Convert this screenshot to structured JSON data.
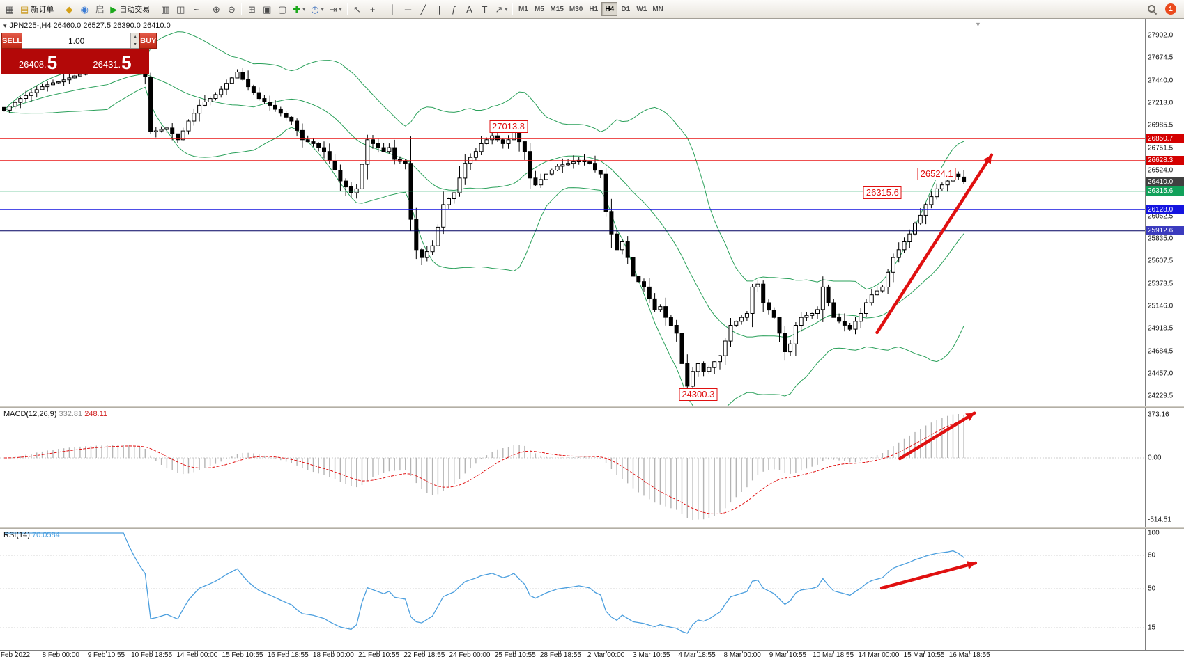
{
  "toolbar": {
    "items": [
      {
        "name": "new-chart",
        "glyph": "▦"
      },
      {
        "name": "new-order",
        "glyph": "▤",
        "glyph_color": "#c99718",
        "label": "新订单"
      },
      {
        "type": "sep"
      },
      {
        "name": "market-watch",
        "glyph": "◆",
        "glyph_color": "#d4a017"
      },
      {
        "name": "navigator",
        "glyph": "◉",
        "glyph_color": "#3b7bd4"
      },
      {
        "name": "terminal",
        "glyph": "启",
        "glyph_color": "#666666"
      },
      {
        "name": "auto-trading",
        "glyph": "▶",
        "glyph_color": "#1ca81c",
        "label": "自动交易"
      },
      {
        "type": "sep"
      },
      {
        "name": "bar-chart",
        "glyph": "▥"
      },
      {
        "name": "candlestick-chart",
        "glyph": "◫"
      },
      {
        "name": "line-chart",
        "glyph": "~"
      },
      {
        "type": "sep"
      },
      {
        "name": "zoom-in",
        "glyph": "⊕"
      },
      {
        "name": "zoom-out",
        "glyph": "⊖"
      },
      {
        "type": "sep"
      },
      {
        "name": "tile-windows",
        "glyph": "⊞"
      },
      {
        "name": "auto-arrange",
        "glyph": "▣"
      },
      {
        "name": "cascade-windows",
        "glyph": "▢"
      },
      {
        "name": "new-chart-dropdown",
        "glyph": "✚",
        "glyph_color": "#1ca81c",
        "caret": true
      },
      {
        "name": "profiles",
        "glyph": "◷",
        "glyph_color": "#2a62b8",
        "caret": true
      },
      {
        "name": "chart-shift",
        "glyph": "⇥",
        "caret": true
      },
      {
        "type": "sep"
      },
      {
        "name": "cursor",
        "glyph": "↖"
      },
      {
        "name": "crosshair",
        "glyph": "+"
      },
      {
        "type": "sep"
      },
      {
        "name": "vertical-line",
        "glyph": "│"
      },
      {
        "name": "horizontal-line",
        "glyph": "─"
      },
      {
        "name": "trendline",
        "glyph": "╱"
      },
      {
        "name": "channel",
        "glyph": "∥"
      },
      {
        "name": "fibonacci",
        "glyph": "ƒ"
      },
      {
        "name": "text",
        "glyph": "A"
      },
      {
        "name": "text-label",
        "glyph": "T"
      },
      {
        "name": "arrows-tool",
        "glyph": "↗",
        "caret": true
      },
      {
        "type": "sep"
      }
    ],
    "timeframes": {
      "items": [
        "M1",
        "M5",
        "M15",
        "M30",
        "H1",
        "H4",
        "D1",
        "W1",
        "MN"
      ],
      "active": "H4"
    },
    "right_badge": "1"
  },
  "chart": {
    "title": "JPN225-,H4  26460.0 26527.5 26390.0 26410.0",
    "collapse_glyph": "▾",
    "shift_marker_glyph": "▼"
  },
  "trade_panel": {
    "sell_label": "SELL",
    "buy_label": "BUY",
    "volume": "1.00",
    "spinner_up": "▴",
    "spinner_down": "▾",
    "sell_price_main": "26408.",
    "sell_price_big": "5",
    "buy_price_main": "26431.",
    "buy_price_big": "5"
  },
  "chart_data": {
    "type": "candlestick",
    "symbol": "JPN225-",
    "timeframe": "H4",
    "last_bar": {
      "open": 26460.0,
      "high": 26527.5,
      "low": 26390.0,
      "close": 26410.0
    },
    "ylim": [
      24131,
      28072
    ],
    "y_ticks": [
      27902.0,
      27674.5,
      27440.0,
      27213.0,
      26985.5,
      26751.5,
      26524.0,
      26062.5,
      25835.0,
      25607.5,
      25373.5,
      25146.0,
      24918.5,
      24684.5,
      24457.0,
      24229.5
    ],
    "closes": [
      27140,
      27180,
      27220,
      27260,
      27290,
      27320,
      27350,
      27380,
      27400,
      27420,
      27430,
      27450,
      27470,
      27490,
      27505,
      27515,
      27530,
      27545,
      27555,
      27570,
      27585,
      27600,
      27620,
      27585,
      27550,
      27515,
      27480,
      26920,
      26930,
      26945,
      26960,
      26900,
      26840,
      26930,
      27030,
      27110,
      27190,
      27225,
      27260,
      27300,
      27355,
      27415,
      27470,
      27530,
      27455,
      27380,
      27320,
      27260,
      27225,
      27190,
      27150,
      27110,
      27070,
      27030,
      26935,
      26840,
      26820,
      26800,
      26760,
      26720,
      26625,
      26530,
      26420,
      26360,
      26300,
      26340,
      26590,
      26840,
      26800,
      26760,
      26720,
      26760,
      26640,
      26620,
      26600,
      26030,
      25720,
      25640,
      25700,
      25760,
      25950,
      26180,
      26240,
      26300,
      26450,
      26600,
      26660,
      26720,
      26800,
      26840,
      26880,
      26840,
      26800,
      26840,
      26920,
      26820,
      26720,
      26450,
      26380,
      26435,
      26490,
      26530,
      26570,
      26585,
      26600,
      26615,
      26630,
      26615,
      26600,
      26530,
      26490,
      26110,
      25880,
      25720,
      25800,
      25640,
      25450,
      25395,
      25340,
      25220,
      25110,
      25140,
      25030,
      24950,
      24870,
      24560,
      24330,
      24480,
      24560,
      24480,
      24520,
      24580,
      24640,
      24790,
      24950,
      24990,
      25030,
      25070,
      25340,
      25370,
      25180,
      25105,
      25030,
      24870,
      24680,
      24760,
      24950,
      25030,
      25050,
      25070,
      25110,
      25340,
      25180,
      25030,
      24990,
      24950,
      24910,
      24990,
      25070,
      25180,
      25260,
      25300,
      25340,
      25490,
      25640,
      25720,
      25800,
      25880,
      25990,
      26070,
      26180,
      26260,
      26340,
      26380,
      26420,
      26490,
      26460,
      26410
    ],
    "forced_bars": [
      {
        "bar": 94,
        "high": 27013.8
      },
      {
        "bar": 126,
        "low": 24300.3
      },
      {
        "bar": 175,
        "high": 26524.1
      },
      {
        "bar": 177,
        "open": 26460.0,
        "high": 26527.5,
        "low": 26390.0,
        "close": 26410.0
      }
    ],
    "bollinger": {
      "period": 20,
      "deviation": 2,
      "color": "#2aa05a"
    },
    "horizontal_lines": [
      {
        "price": 26850.7,
        "color": "#e81717",
        "tag_bg": "#d40000"
      },
      {
        "price": 26628.3,
        "color": "#e81717",
        "tag_bg": "#d40000"
      },
      {
        "price": 26410.0,
        "color": "#a0a0a0",
        "tag_bg": "#404040"
      },
      {
        "price": 26315.6,
        "color": "#11a15a",
        "tag_bg": "#11a15a"
      },
      {
        "price": 26128.0,
        "color": "#1414e0",
        "tag_bg": "#1414e0"
      },
      {
        "price": 25912.6,
        "color": "#000060",
        "tag_bg": "#3b3bbe"
      }
    ],
    "annotations": [
      {
        "text": "27013.8",
        "bar": 93,
        "price": 26970
      },
      {
        "text": "26524.1",
        "bar": 172,
        "price": 26490
      },
      {
        "text": "26315.6",
        "bar": 162,
        "price": 26300
      },
      {
        "text": "24300.3",
        "bar": 128,
        "price": 24245
      }
    ],
    "arrows": [
      {
        "panel": "main",
        "x1": 0.766,
        "y1": 0.811,
        "x2": 0.866,
        "y2": 0.352
      },
      {
        "panel": "macd",
        "x1": 0.786,
        "y1": 0.427,
        "x2": 0.851,
        "y2": 0.045
      },
      {
        "panel": "rsi",
        "x1": 0.77,
        "y1": 0.489,
        "x2": 0.852,
        "y2": 0.282
      }
    ],
    "x_labels": [
      "Feb 2022",
      "8 Feb 00:00",
      "9 Feb 10:55",
      "10 Feb 18:55",
      "14 Feb 00:00",
      "15 Feb 10:55",
      "16 Feb 18:55",
      "18 Feb 00:00",
      "21 Feb 10:55",
      "22 Feb 18:55",
      "24 Feb 00:00",
      "25 Feb 10:55",
      "28 Feb 18:55",
      "2 Mar 00:00",
      "3 Mar 10:55",
      "4 Mar 18:55",
      "8 Mar 00:00",
      "9 Mar 10:55",
      "10 Mar 18:55",
      "14 Mar 00:00",
      "15 Mar 10:55",
      "16 Mar 18:55"
    ]
  },
  "macd": {
    "name": "MACD(12,26,9)",
    "value_main": "332.81",
    "value_signal": "248.11",
    "axis": [
      "373.16",
      "0.00",
      "-514.51"
    ],
    "histogram_color": "#b4b4b4",
    "signal_color": "#e01010"
  },
  "rsi": {
    "name": "RSI(14)",
    "value": "70.0584",
    "axis": [
      100,
      80,
      50,
      15
    ],
    "levels": [
      80,
      50,
      15
    ],
    "line_color": "#4a9ede"
  }
}
